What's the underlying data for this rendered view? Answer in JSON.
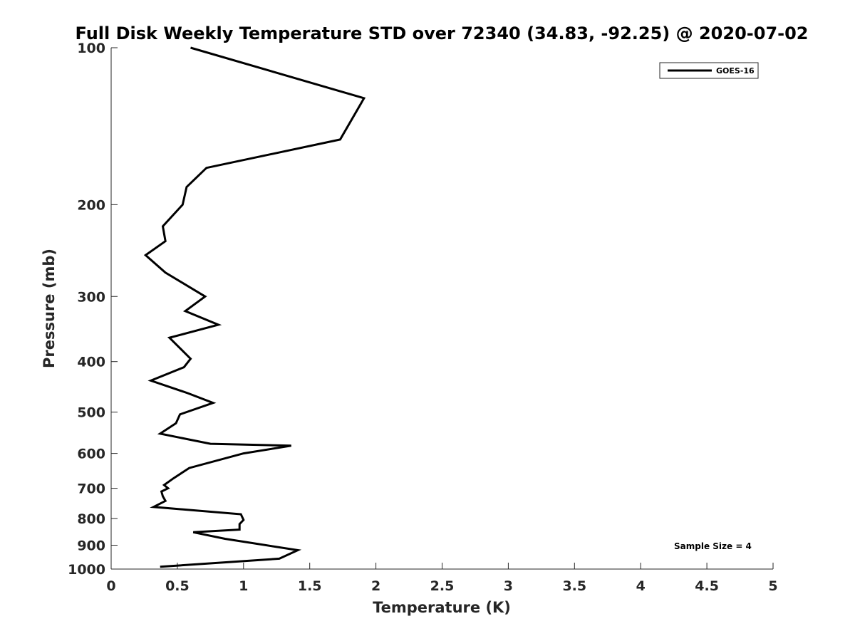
{
  "chart_data": {
    "type": "line",
    "title": "Full Disk Weekly Temperature STD over 72340 (34.83, -92.25) @ 2020-07-02",
    "xlabel": "Temperature (K)",
    "ylabel": "Pressure (mb)",
    "xlim": [
      0,
      5
    ],
    "ylim": [
      100,
      1000
    ],
    "y_scale": "log",
    "y_reversed": true,
    "grid": false,
    "x_ticks": [
      "0",
      "0.5",
      "1",
      "1.5",
      "2",
      "2.5",
      "3",
      "3.5",
      "4",
      "4.5",
      "5"
    ],
    "y_ticks": [
      "100",
      "200",
      "300",
      "400",
      "500",
      "600",
      "700",
      "800",
      "900",
      "1000"
    ],
    "legend": {
      "position": "top-right",
      "entries": [
        "GOES-16"
      ]
    },
    "annotation": "Sample Size = 4",
    "series": [
      {
        "name": "GOES-16",
        "color": "#000000",
        "x": [
          0.6,
          1.91,
          1.73,
          0.72,
          0.57,
          0.54,
          0.39,
          0.41,
          0.26,
          0.41,
          0.71,
          0.56,
          0.81,
          0.44,
          0.6,
          0.55,
          0.3,
          0.58,
          0.77,
          0.52,
          0.49,
          0.37,
          0.75,
          1.36,
          1.0,
          0.59,
          0.47,
          0.4,
          0.43,
          0.38,
          0.39,
          0.41,
          0.32,
          0.98,
          1.0,
          0.97,
          0.97,
          0.62,
          0.86,
          1.41,
          1.27,
          0.37
        ],
        "y": [
          100,
          125,
          150,
          170,
          185,
          200,
          220,
          235,
          250,
          270,
          300,
          320,
          340,
          360,
          395,
          410,
          435,
          460,
          480,
          505,
          525,
          550,
          575,
          580,
          600,
          640,
          670,
          690,
          700,
          710,
          725,
          740,
          760,
          785,
          805,
          820,
          840,
          850,
          875,
          920,
          955,
          990
        ]
      }
    ]
  }
}
